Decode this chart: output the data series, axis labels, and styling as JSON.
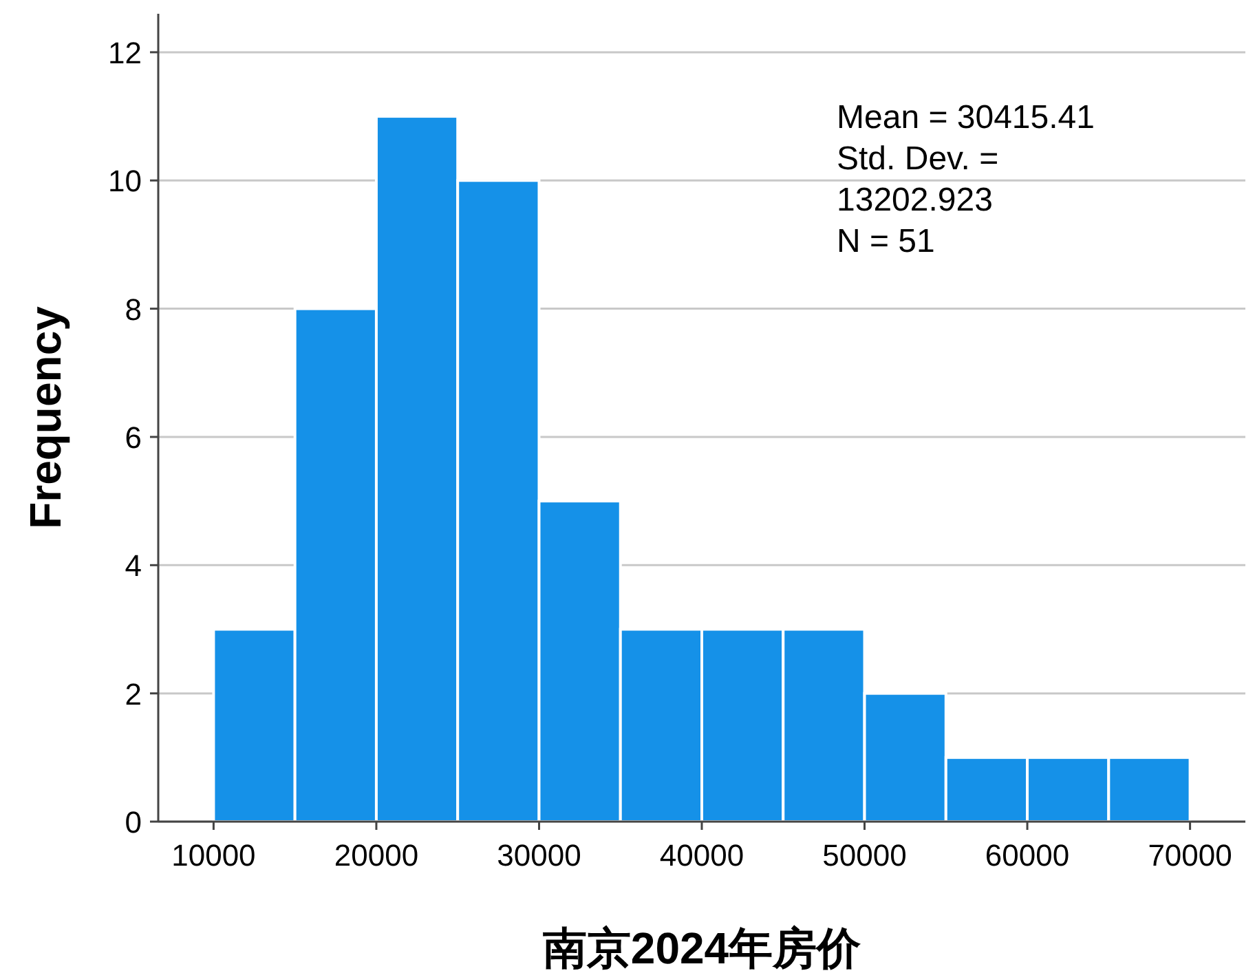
{
  "chart_data": {
    "type": "histogram",
    "xlabel": "南京2024年房价",
    "ylabel": "Frequency",
    "bins": [
      10000,
      15000,
      20000,
      25000,
      30000,
      35000,
      40000,
      45000,
      50000,
      55000,
      60000,
      65000,
      70000
    ],
    "values": [
      3,
      8,
      11,
      10,
      5,
      3,
      3,
      3,
      2,
      1,
      1,
      1
    ],
    "color": "#1591e8",
    "xlim": [
      6600,
      73400
    ],
    "ylim": [
      0,
      12.6
    ],
    "xticks": [
      10000,
      20000,
      30000,
      40000,
      50000,
      60000,
      70000
    ],
    "yticks": [
      0,
      2,
      4,
      6,
      8,
      10,
      12
    ],
    "grid": "y",
    "annotations": [
      "Mean = 30415.41",
      "Std. Dev. =",
      "13202.923",
      "N = 51"
    ]
  }
}
